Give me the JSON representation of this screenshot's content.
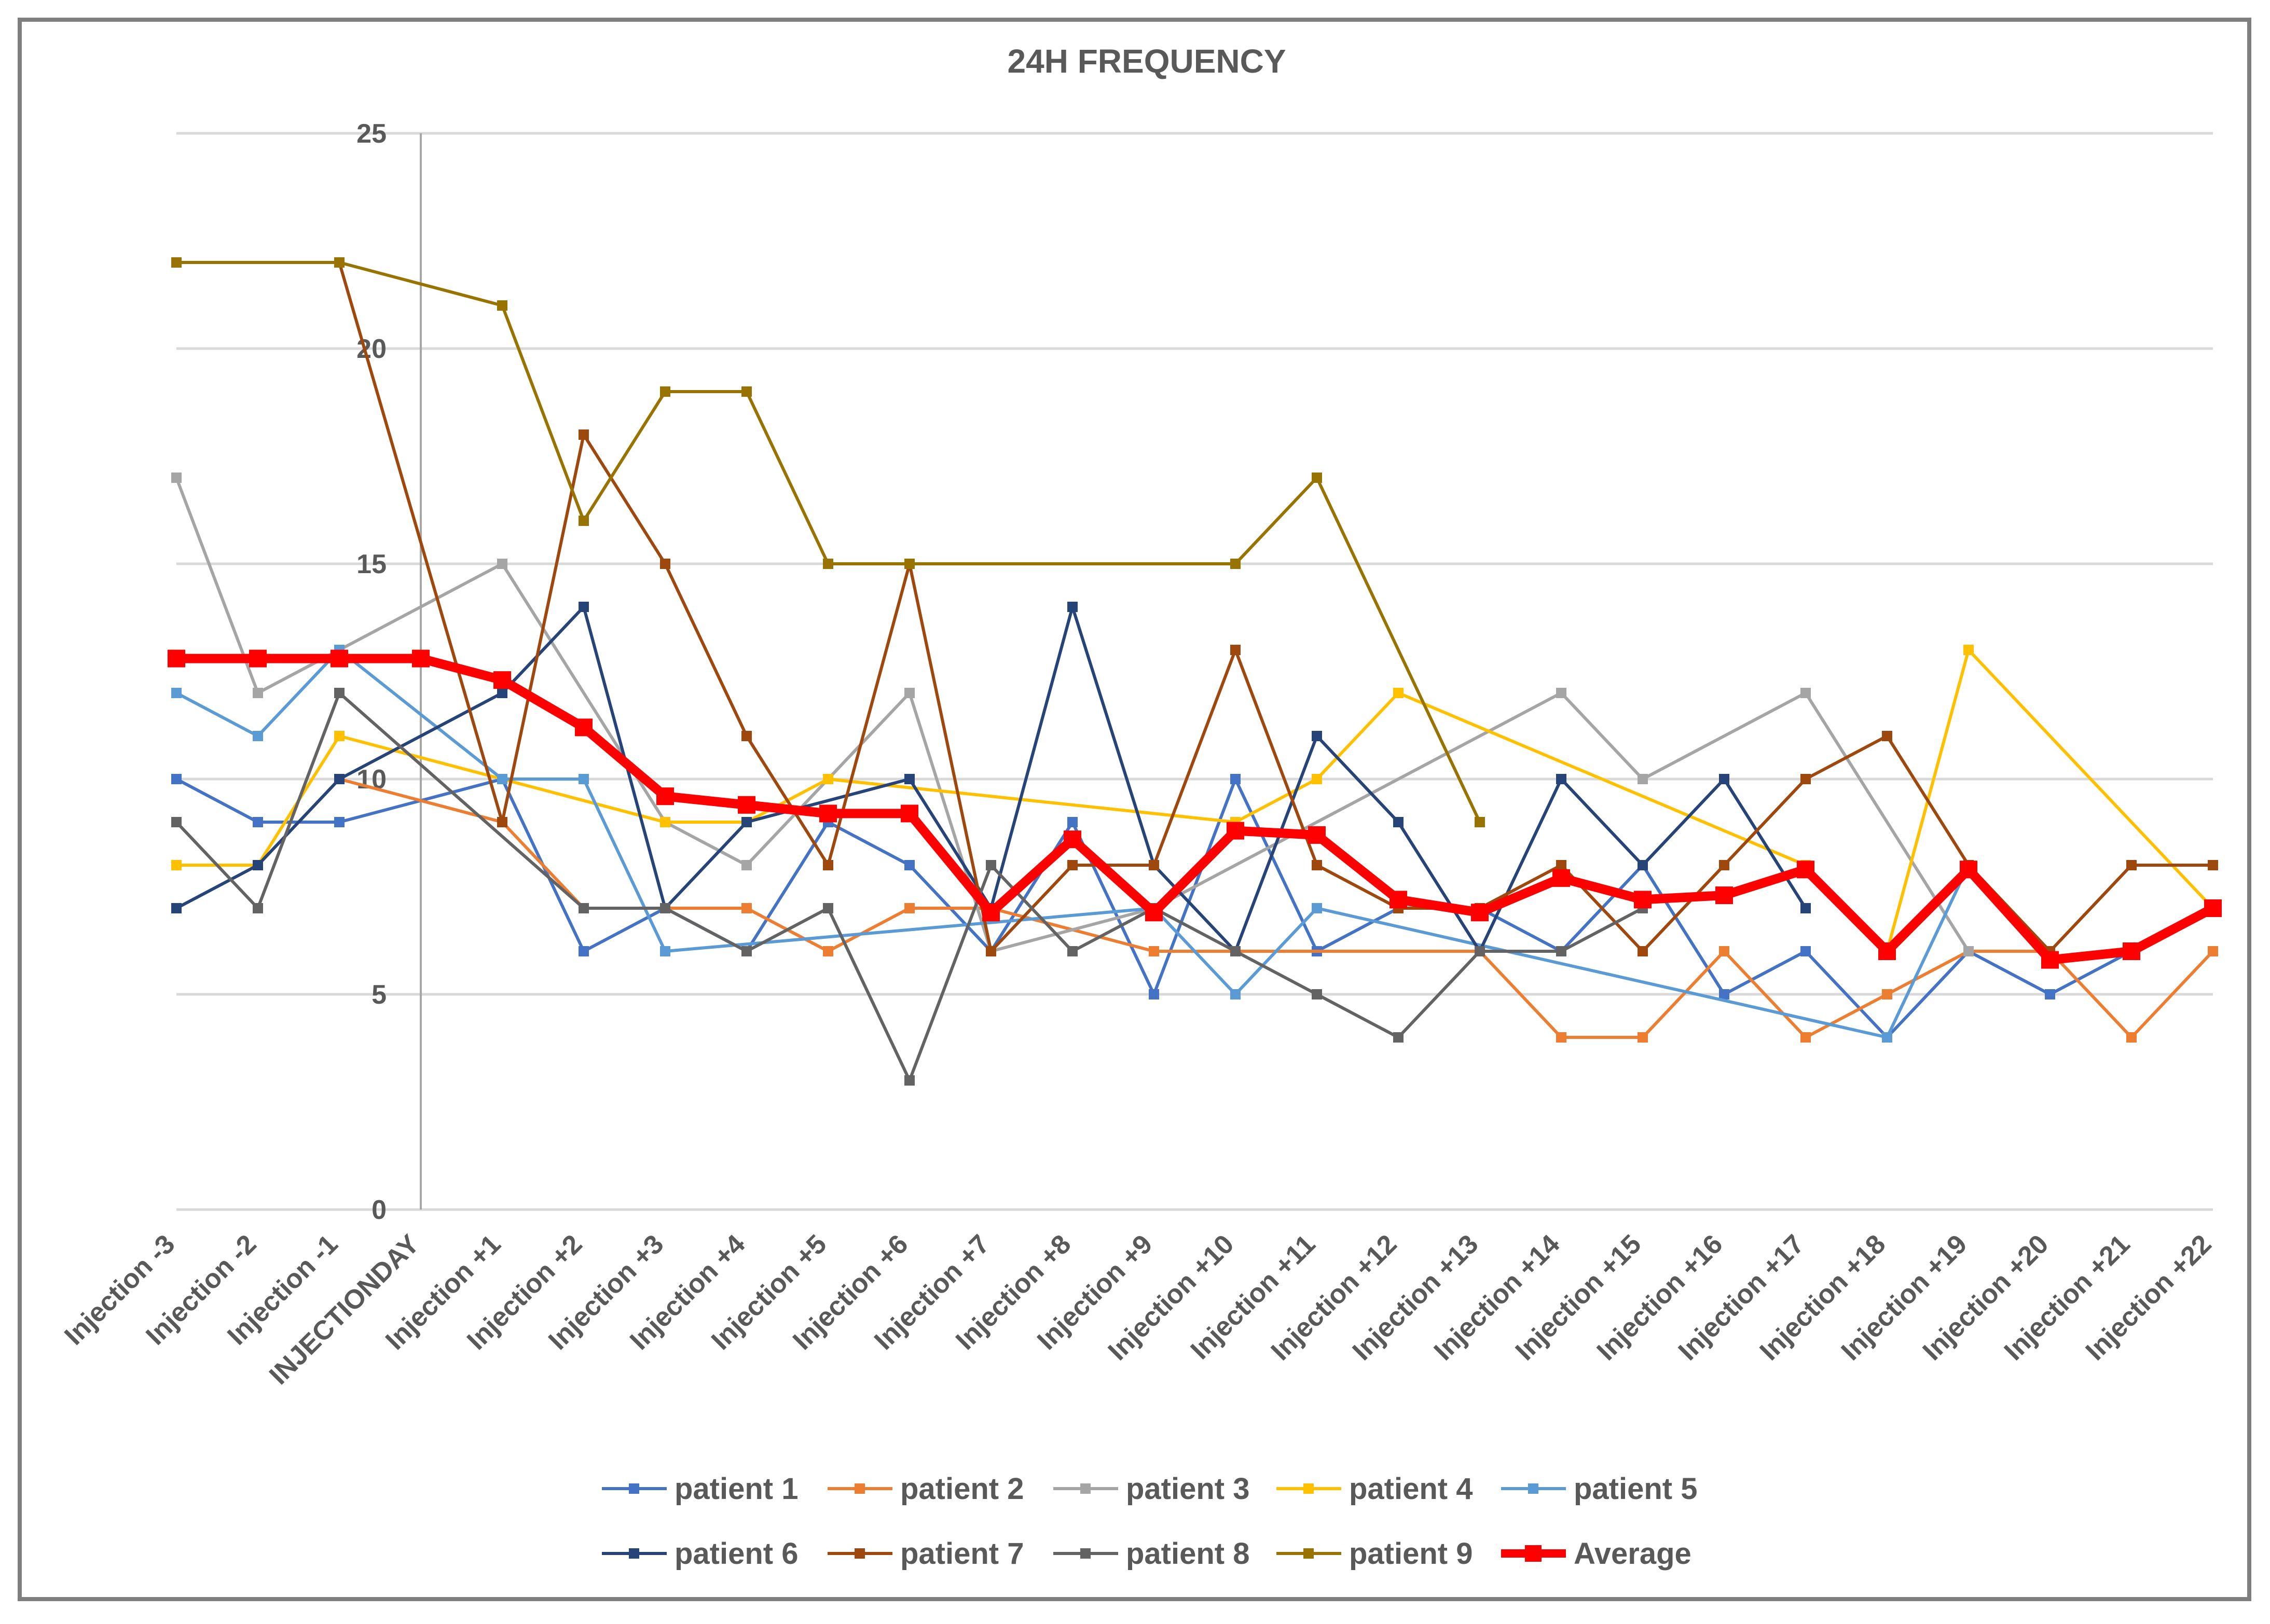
{
  "chart_data": {
    "type": "line",
    "title": "24H FREQUENCY",
    "xlabel": "",
    "ylabel": "",
    "ylim": [
      0,
      25
    ],
    "yticks": [
      0,
      5,
      10,
      15,
      20,
      25
    ],
    "grid": true,
    "legend_position": "bottom",
    "categories": [
      "Injection -3",
      "Injection -2",
      "Injection -1",
      "INJECTIONDAY",
      "Injection +1",
      "Injection +2",
      "Injection +3",
      "Injection +4",
      "Injection +5",
      "Injection +6",
      "Injection +7",
      "Injection +8",
      "Injection +9",
      "Injection +10",
      "Injection +11",
      "Injection +12",
      "Injection +13",
      "Injection +14",
      "Injection +15",
      "Injection +16",
      "Injection +17",
      "Injection +18",
      "Injection +19",
      "Injection +20",
      "Injection +21",
      "Injection +22"
    ],
    "series": [
      {
        "name": "patient 1",
        "color": "#4472c4",
        "values": [
          10,
          9,
          9,
          null,
          10,
          6,
          7,
          6,
          9,
          8,
          6,
          9,
          5,
          10,
          6,
          7,
          7,
          6,
          8,
          5,
          6,
          4,
          6,
          5,
          6,
          null
        ]
      },
      {
        "name": "patient 2",
        "color": "#ed7d31",
        "values": [
          null,
          null,
          10,
          null,
          9,
          7,
          7,
          7,
          6,
          7,
          7,
          null,
          6,
          6,
          null,
          null,
          6,
          4,
          4,
          6,
          4,
          5,
          6,
          6,
          4,
          6
        ]
      },
      {
        "name": "patient 3",
        "color": "#a5a5a5",
        "values": [
          17,
          12,
          13,
          null,
          15,
          null,
          9,
          8,
          10,
          12,
          6,
          null,
          7,
          null,
          null,
          null,
          null,
          12,
          10,
          null,
          12,
          null,
          6,
          null,
          null,
          null
        ]
      },
      {
        "name": "patient 4",
        "color": "#ffc000",
        "values": [
          8,
          8,
          11,
          null,
          10,
          null,
          9,
          9,
          10,
          null,
          null,
          null,
          null,
          9,
          10,
          12,
          null,
          null,
          null,
          null,
          8,
          6,
          13,
          null,
          null,
          7
        ]
      },
      {
        "name": "patient 5",
        "color": "#5b9bd5",
        "values": [
          12,
          11,
          13,
          null,
          10,
          10,
          6,
          null,
          null,
          null,
          null,
          null,
          7,
          5,
          7,
          null,
          null,
          null,
          null,
          null,
          null,
          4,
          8,
          null,
          null,
          null
        ]
      },
      {
        "name": "patient 6",
        "color": "#264478",
        "values": [
          7,
          8,
          10,
          null,
          12,
          14,
          7,
          9,
          null,
          10,
          7,
          14,
          8,
          6,
          11,
          9,
          6,
          10,
          8,
          10,
          7,
          null,
          null,
          null,
          null,
          null
        ]
      },
      {
        "name": "patient 7",
        "color": "#9e480e",
        "values": [
          null,
          null,
          22,
          null,
          9,
          18,
          15,
          11,
          8,
          15,
          6,
          8,
          8,
          13,
          8,
          7,
          7,
          8,
          6,
          8,
          10,
          11,
          8,
          6,
          8,
          8
        ]
      },
      {
        "name": "patient 8",
        "color": "#636363",
        "values": [
          9,
          7,
          12,
          null,
          null,
          7,
          7,
          6,
          7,
          3,
          8,
          6,
          7,
          6,
          5,
          4,
          6,
          6,
          7,
          null,
          null,
          null,
          null,
          null,
          null,
          null
        ]
      },
      {
        "name": "patient 9",
        "color": "#997300",
        "values": [
          22,
          null,
          22,
          null,
          21,
          16,
          19,
          19,
          15,
          15,
          null,
          null,
          null,
          15,
          17,
          null,
          9,
          null,
          null,
          null,
          null,
          null,
          null,
          null,
          null,
          null
        ]
      },
      {
        "name": "Average",
        "color": "#ff0000",
        "values": [
          12.8,
          12.8,
          12.8,
          12.8,
          12.3,
          11.2,
          9.6,
          9.4,
          9.2,
          9.2,
          6.9,
          8.6,
          6.9,
          8.8,
          8.7,
          7.2,
          6.9,
          7.7,
          7.2,
          7.3,
          7.9,
          6.0,
          7.9,
          5.8,
          6.0,
          7.0
        ]
      }
    ]
  }
}
